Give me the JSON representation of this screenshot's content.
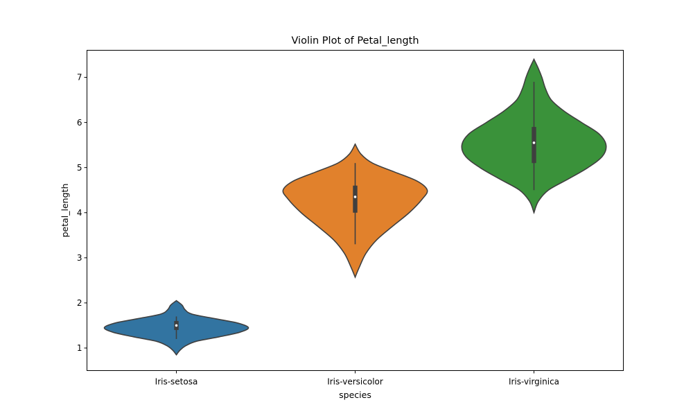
{
  "chart_data": {
    "type": "violin",
    "title": "Violin Plot of Petal_length",
    "xlabel": "species",
    "ylabel": "petal_length",
    "ylim": [
      0.5,
      7.6
    ],
    "yticks": [
      1,
      2,
      3,
      4,
      5,
      6,
      7
    ],
    "grid": false,
    "categories": [
      "Iris-setosa",
      "Iris-versicolor",
      "Iris-virginica"
    ],
    "series": [
      {
        "category": "Iris-setosa",
        "color": "#3274a1",
        "kde_min": 0.85,
        "kde_max": 2.05,
        "whisker_low": 1.2,
        "q1": 1.4,
        "median": 1.5,
        "q3": 1.6,
        "whisker_high": 1.7,
        "density": [
          [
            0.85,
            0.0
          ],
          [
            0.95,
            0.05
          ],
          [
            1.05,
            0.13
          ],
          [
            1.15,
            0.28
          ],
          [
            1.25,
            0.6
          ],
          [
            1.35,
            0.88
          ],
          [
            1.45,
            1.0
          ],
          [
            1.55,
            0.86
          ],
          [
            1.65,
            0.54
          ],
          [
            1.75,
            0.22
          ],
          [
            1.85,
            0.12
          ],
          [
            1.95,
            0.08
          ],
          [
            2.05,
            0.0
          ]
        ]
      },
      {
        "category": "Iris-versicolor",
        "color": "#e1812c",
        "kde_min": 2.57,
        "kde_max": 5.52,
        "whisker_low": 3.3,
        "q1": 4.0,
        "median": 4.35,
        "q3": 4.6,
        "whisker_high": 5.1,
        "density": [
          [
            2.57,
            0.0
          ],
          [
            2.8,
            0.06
          ],
          [
            3.1,
            0.15
          ],
          [
            3.4,
            0.3
          ],
          [
            3.7,
            0.52
          ],
          [
            4.0,
            0.75
          ],
          [
            4.3,
            0.93
          ],
          [
            4.5,
            1.0
          ],
          [
            4.7,
            0.86
          ],
          [
            4.9,
            0.55
          ],
          [
            5.1,
            0.24
          ],
          [
            5.3,
            0.08
          ],
          [
            5.52,
            0.0
          ]
        ]
      },
      {
        "category": "Iris-virginica",
        "color": "#3a923a",
        "kde_min": 4.0,
        "kde_max": 7.4,
        "whisker_low": 4.5,
        "q1": 5.1,
        "median": 5.55,
        "q3": 5.9,
        "whisker_high": 6.9,
        "density": [
          [
            4.0,
            0.0
          ],
          [
            4.25,
            0.06
          ],
          [
            4.5,
            0.2
          ],
          [
            4.75,
            0.48
          ],
          [
            5.0,
            0.75
          ],
          [
            5.25,
            0.95
          ],
          [
            5.5,
            1.0
          ],
          [
            5.75,
            0.9
          ],
          [
            6.0,
            0.66
          ],
          [
            6.25,
            0.42
          ],
          [
            6.5,
            0.24
          ],
          [
            6.75,
            0.16
          ],
          [
            7.0,
            0.11
          ],
          [
            7.2,
            0.06
          ],
          [
            7.4,
            0.0
          ]
        ]
      }
    ]
  }
}
